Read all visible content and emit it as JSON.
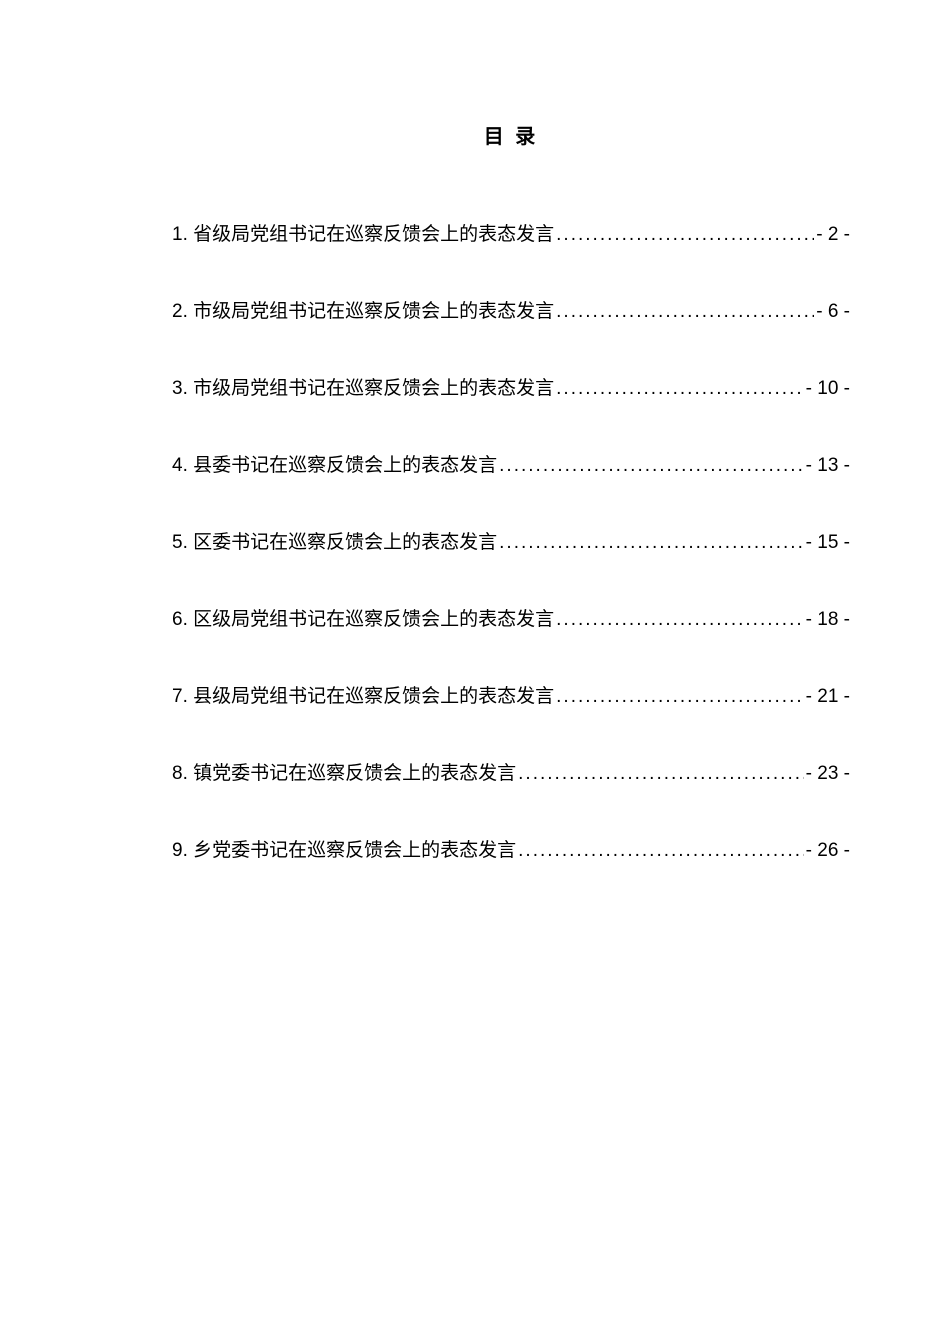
{
  "title": "目 录",
  "items": [
    {
      "text": "1. 省级局党组书记在巡察反馈会上的表态发言",
      "page": "- 2 -"
    },
    {
      "text": "2. 市级局党组书记在巡察反馈会上的表态发言",
      "page": "- 6 -"
    },
    {
      "text": "3. 市级局党组书记在巡察反馈会上的表态发言",
      "page": "- 10 -"
    },
    {
      "text": "4. 县委书记在巡察反馈会上的表态发言",
      "page": "- 13 -"
    },
    {
      "text": "5. 区委书记在巡察反馈会上的表态发言",
      "page": "- 15 -"
    },
    {
      "text": "6. 区级局党组书记在巡察反馈会上的表态发言",
      "page": "- 18 -"
    },
    {
      "text": "7. 县级局党组书记在巡察反馈会上的表态发言",
      "page": "- 21 -"
    },
    {
      "text": "8. 镇党委书记在巡察反馈会上的表态发言",
      "page": "- 23 -"
    },
    {
      "text": "9. 乡党委书记在巡察反馈会上的表态发言",
      "page": "- 26 -"
    }
  ]
}
